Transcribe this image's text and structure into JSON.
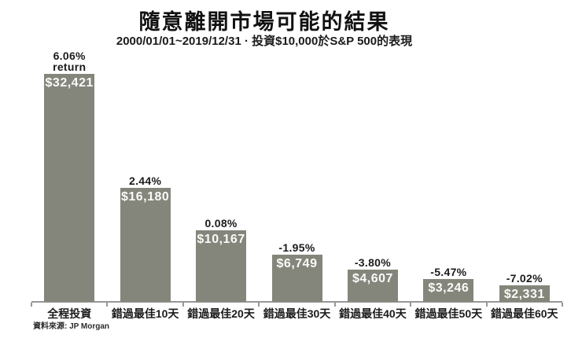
{
  "colors": {
    "bar": "#84867b",
    "axis": "#979797",
    "text": "#1b1b1b",
    "value_text": "#fafaf8",
    "background": "#ffffff"
  },
  "source_note": "資料來源: JP Morgan",
  "chart_data": {
    "type": "bar",
    "title": "隨意離開市場可能的結果",
    "subtitle": "2000/01/01~2019/12/31 · 投資$10,000於S&P 500的表現",
    "categories": [
      "全程投資",
      "錯過最佳10天",
      "錯過最佳20天",
      "錯過最佳30天",
      "錯過最佳40天",
      "錯過最佳50天",
      "錯過最佳60天"
    ],
    "values": [
      32421,
      16180,
      10167,
      6749,
      4607,
      3246,
      2331
    ],
    "value_labels": [
      "$32,421",
      "$16,180",
      "$10,167",
      "$6,749",
      "$4,607",
      "$3,246",
      "$2,331"
    ],
    "pct_label_lines": [
      [
        "6.06%",
        "return"
      ],
      [
        "2.44%"
      ],
      [
        "0.08%"
      ],
      [
        "-1.95%"
      ],
      [
        "-3.80%"
      ],
      [
        "-5.47%"
      ],
      [
        "-7.02%"
      ]
    ],
    "returns_pct": [
      6.06,
      2.44,
      0.08,
      -1.95,
      -3.8,
      -5.47,
      -7.02
    ],
    "xlabel": "",
    "ylabel": "",
    "ylim": [
      0,
      32421
    ],
    "y_axis_visible": false,
    "grid": false,
    "legend": false,
    "source": "資料來源: JP Morgan"
  }
}
